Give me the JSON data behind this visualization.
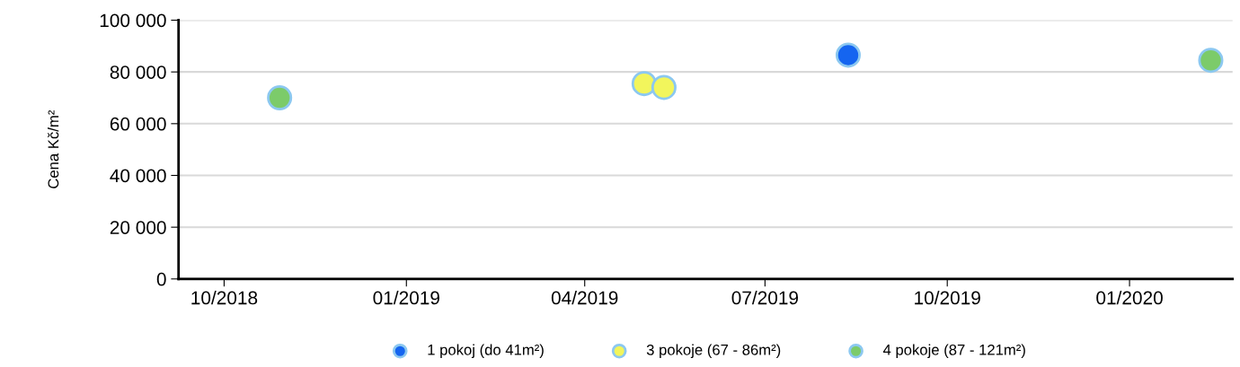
{
  "chart_data": {
    "type": "scatter",
    "ylabel": "Cena Kč/m²",
    "series": [
      {
        "name": "1 pokoj (do 41m²)",
        "color": "#1565f0",
        "x": [
          "2019-08-12"
        ],
        "values": [
          86500
        ]
      },
      {
        "name": "3 pokoje (67 - 86m²)",
        "color": "#f2f55c",
        "x": [
          "2019-05-01",
          "2019-05-11"
        ],
        "values": [
          75500,
          74000
        ]
      },
      {
        "name": "4 pokoje (87 - 121m²)",
        "color": "#7ccb6a",
        "x": [
          "2018-10-29",
          "2020-02-11"
        ],
        "values": [
          70000,
          84500
        ]
      }
    ],
    "xlim": [
      "2018-09-08",
      "2020-02-22"
    ],
    "xticks": [
      {
        "value": "2018-10-01",
        "label": "10/2018"
      },
      {
        "value": "2019-01-01",
        "label": "01/2019"
      },
      {
        "value": "2019-04-01",
        "label": "04/2019"
      },
      {
        "value": "2019-07-01",
        "label": "07/2019"
      },
      {
        "value": "2019-10-01",
        "label": "10/2019"
      },
      {
        "value": "2020-01-01",
        "label": "01/2020"
      }
    ],
    "ylim": [
      0,
      100000
    ],
    "yticks": [
      0,
      {
        "value": 20000,
        "label": "20 000"
      },
      {
        "value": 40000,
        "label": "40 000"
      },
      {
        "value": 60000,
        "label": "60 000"
      },
      {
        "value": 80000,
        "label": "80 000"
      },
      {
        "value": 100000,
        "label": "100 000"
      }
    ],
    "grid": "y",
    "legend": "bottom",
    "marker": "circle"
  }
}
